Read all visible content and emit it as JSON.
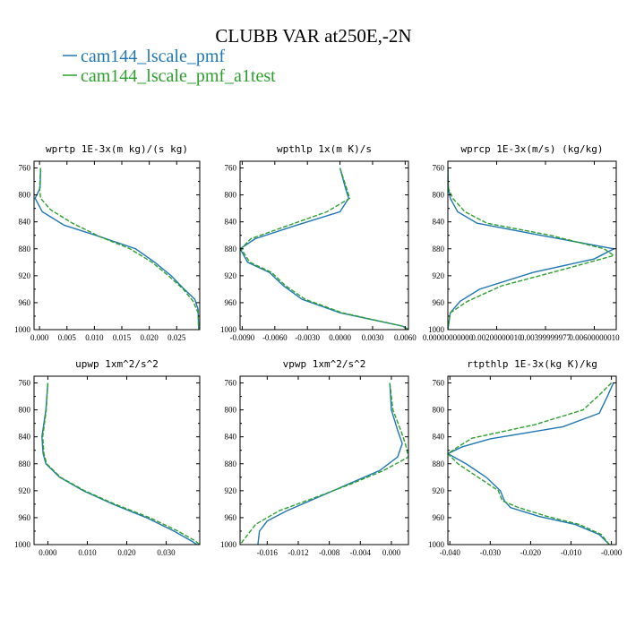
{
  "figure": {
    "title": "CLUBB VAR at250E,-2N",
    "legend": [
      {
        "name": "cam144_lscale_pmf",
        "color": "#1f77b4",
        "dash": "solid"
      },
      {
        "name": "cam144_lscale_pmf_a1test",
        "color": "#2ca02c",
        "dash": "dashed"
      }
    ]
  },
  "chart_data": [
    {
      "type": "line",
      "title": "wprtp  1E-3x(m kg)/(s kg)",
      "xlim": [
        -0.001,
        0.0292
      ],
      "ylim": [
        1000,
        750
      ],
      "xticks": [
        0.0,
        0.005,
        0.01,
        0.015,
        0.02,
        0.025
      ],
      "xtick_labels": [
        "0.000",
        "0.005",
        "0.010",
        "0.015",
        "0.020",
        "0.025"
      ],
      "yticks": [
        760,
        800,
        840,
        880,
        920,
        960,
        1000
      ],
      "series": [
        {
          "name": "cam144_lscale_pmf",
          "points": [
            [
              0.0002,
              760
            ],
            [
              0.0001,
              790
            ],
            [
              -0.0008,
              805
            ],
            [
              0.0005,
              825
            ],
            [
              0.0045,
              845
            ],
            [
              0.011,
              862
            ],
            [
              0.0175,
              880
            ],
            [
              0.021,
              900
            ],
            [
              0.024,
              920
            ],
            [
              0.026,
              937
            ],
            [
              0.0283,
              955
            ],
            [
              0.0289,
              970
            ],
            [
              0.029,
              1000
            ]
          ]
        },
        {
          "name": "cam144_lscale_pmf_a1test",
          "points": [
            [
              0.0002,
              760
            ],
            [
              0.0,
              790
            ],
            [
              0.0002,
              805
            ],
            [
              0.002,
              822
            ],
            [
              0.006,
              842
            ],
            [
              0.011,
              862
            ],
            [
              0.0165,
              880
            ],
            [
              0.0205,
              900
            ],
            [
              0.0235,
              920
            ],
            [
              0.0262,
              940
            ],
            [
              0.028,
              958
            ],
            [
              0.0289,
              975
            ],
            [
              0.029,
              1000
            ]
          ]
        }
      ]
    },
    {
      "type": "line",
      "title": "wpthlp  1x(m K)/s",
      "xlim": [
        -0.0092,
        0.0063
      ],
      "ylim": [
        1000,
        750
      ],
      "xticks": [
        -0.009,
        -0.006,
        -0.003,
        0.0,
        0.003,
        0.006
      ],
      "xtick_labels": [
        "-0.0090",
        "-0.0060",
        "-0.0030",
        "0.0000",
        "0.0030",
        "0.0060"
      ],
      "yticks": [
        760,
        800,
        840,
        880,
        920,
        960,
        1000
      ],
      "series": [
        {
          "name": "cam144_lscale_pmf",
          "points": [
            [
              0.0,
              760
            ],
            [
              0.0005,
              790
            ],
            [
              0.0008,
              805
            ],
            [
              0.0,
              825
            ],
            [
              -0.004,
              845
            ],
            [
              -0.0078,
              865
            ],
            [
              -0.0092,
              880
            ],
            [
              -0.0085,
              900
            ],
            [
              -0.0065,
              915
            ],
            [
              -0.0052,
              935
            ],
            [
              -0.0035,
              955
            ],
            [
              0.0,
              975
            ],
            [
              0.0058,
              995
            ],
            [
              0.0063,
              1000
            ]
          ]
        },
        {
          "name": "cam144_lscale_pmf_a1test",
          "points": [
            [
              0.0,
              760
            ],
            [
              0.0006,
              790
            ],
            [
              0.0009,
              805
            ],
            [
              -0.0012,
              825
            ],
            [
              -0.0047,
              845
            ],
            [
              -0.0082,
              865
            ],
            [
              -0.0091,
              880
            ],
            [
              -0.0083,
              900
            ],
            [
              -0.0063,
              915
            ],
            [
              -0.005,
              935
            ],
            [
              -0.0032,
              955
            ],
            [
              0.0002,
              975
            ],
            [
              0.0058,
              995
            ],
            [
              0.0063,
              1000
            ]
          ]
        }
      ]
    },
    {
      "type": "line",
      "title": "wprcp  1E-3x(m/s) (kg/kg)",
      "xlim": [
        0.0,
        0.0069
      ],
      "ylim": [
        1000,
        750
      ],
      "xticks": [
        0.0,
        0.002,
        0.004,
        0.006
      ],
      "xtick_labels": [
        "0.00000000000",
        "0.00200000010",
        "0.00399999977",
        "0.00600000010"
      ],
      "yticks": [
        760,
        800,
        840,
        880,
        920,
        960,
        1000
      ],
      "series": [
        {
          "name": "cam144_lscale_pmf",
          "points": [
            [
              0.0,
              760
            ],
            [
              2e-05,
              790
            ],
            [
              0.0001,
              805
            ],
            [
              0.0004,
              825
            ],
            [
              0.0012,
              842
            ],
            [
              0.0038,
              860
            ],
            [
              0.0068,
              880
            ],
            [
              0.006,
              895
            ],
            [
              0.0035,
              915
            ],
            [
              0.0013,
              940
            ],
            [
              0.0005,
              958
            ],
            [
              0.0001,
              975
            ],
            [
              0.0,
              1000
            ]
          ]
        },
        {
          "name": "cam144_lscale_pmf_a1test",
          "points": [
            [
              0.0,
              760
            ],
            [
              2e-05,
              790
            ],
            [
              0.0002,
              805
            ],
            [
              0.0007,
              825
            ],
            [
              0.0016,
              842
            ],
            [
              0.0042,
              860
            ],
            [
              0.0064,
              880
            ],
            [
              0.0068,
              890
            ],
            [
              0.0048,
              910
            ],
            [
              0.0022,
              935
            ],
            [
              0.0008,
              958
            ],
            [
              0.0001,
              975
            ],
            [
              0.0,
              1000
            ]
          ]
        }
      ]
    },
    {
      "type": "line",
      "title": "upwp  1xm^2/s^2",
      "xlim": [
        -0.0035,
        0.0385
      ],
      "ylim": [
        1000,
        750
      ],
      "xticks": [
        0.0,
        0.01,
        0.02,
        0.03
      ],
      "xtick_labels": [
        "0.000",
        "0.010",
        "0.020",
        "0.030"
      ],
      "yticks": [
        760,
        800,
        840,
        880,
        920,
        960,
        1000
      ],
      "series": [
        {
          "name": "cam144_lscale_pmf",
          "points": [
            [
              0.0,
              760
            ],
            [
              -0.0005,
              800
            ],
            [
              -0.0015,
              840
            ],
            [
              -0.0012,
              865
            ],
            [
              -0.0005,
              880
            ],
            [
              0.003,
              900
            ],
            [
              0.009,
              920
            ],
            [
              0.0165,
              940
            ],
            [
              0.025,
              960
            ],
            [
              0.032,
              980
            ],
            [
              0.0365,
              995
            ],
            [
              0.0378,
              1000
            ]
          ]
        },
        {
          "name": "cam144_lscale_pmf_a1test",
          "points": [
            [
              0.0,
              760
            ],
            [
              -0.0004,
              800
            ],
            [
              -0.0013,
              840
            ],
            [
              -0.001,
              865
            ],
            [
              -0.0003,
              880
            ],
            [
              0.0032,
              900
            ],
            [
              0.0093,
              920
            ],
            [
              0.017,
              940
            ],
            [
              0.0258,
              960
            ],
            [
              0.033,
              980
            ],
            [
              0.0375,
              995
            ],
            [
              0.0384,
              1000
            ]
          ]
        }
      ]
    },
    {
      "type": "line",
      "title": "vpwp  1xm^2/s^2",
      "xlim": [
        -0.0195,
        0.0022
      ],
      "ylim": [
        1000,
        750
      ],
      "xticks": [
        -0.016,
        -0.012,
        -0.008,
        -0.004,
        0.0
      ],
      "xtick_labels": [
        "-0.016",
        "-0.012",
        "-0.008",
        "-0.004",
        "0.000"
      ],
      "yticks": [
        760,
        800,
        840,
        880,
        920,
        960,
        1000
      ],
      "series": [
        {
          "name": "cam144_lscale_pmf",
          "points": [
            [
              -0.0002,
              760
            ],
            [
              0.0,
              800
            ],
            [
              0.0008,
              830
            ],
            [
              0.0014,
              850
            ],
            [
              0.0008,
              870
            ],
            [
              -0.0015,
              890
            ],
            [
              -0.0055,
              910
            ],
            [
              -0.0095,
              930
            ],
            [
              -0.0135,
              950
            ],
            [
              -0.016,
              965
            ],
            [
              -0.017,
              980
            ],
            [
              -0.0172,
              1000
            ]
          ]
        },
        {
          "name": "cam144_lscale_pmf_a1test",
          "points": [
            [
              -0.0002,
              760
            ],
            [
              0.0002,
              800
            ],
            [
              0.0012,
              830
            ],
            [
              0.0018,
              850
            ],
            [
              0.0022,
              870
            ],
            [
              -0.001,
              890
            ],
            [
              -0.0052,
              910
            ],
            [
              -0.0098,
              930
            ],
            [
              -0.0145,
              950
            ],
            [
              -0.0175,
              970
            ],
            [
              -0.0195,
              1000
            ]
          ]
        }
      ]
    },
    {
      "type": "line",
      "title": "rtpthlp  1E-3x(kg K)/kg",
      "xlim": [
        -0.0405,
        0.0012
      ],
      "ylim": [
        1000,
        750
      ],
      "xticks": [
        -0.04,
        -0.03,
        -0.02,
        -0.01,
        0.0
      ],
      "xtick_labels": [
        "-0.040",
        "-0.030",
        "-0.020",
        "-0.010",
        "-0.000"
      ],
      "yticks": [
        760,
        800,
        840,
        880,
        920,
        960,
        1000
      ],
      "series": [
        {
          "name": "cam144_lscale_pmf",
          "points": [
            [
              0.0005,
              760
            ],
            [
              -0.001,
              780
            ],
            [
              -0.003,
              805
            ],
            [
              -0.012,
              825
            ],
            [
              -0.03,
              843
            ],
            [
              -0.037,
              855
            ],
            [
              -0.0405,
              865
            ],
            [
              -0.036,
              880
            ],
            [
              -0.031,
              900
            ],
            [
              -0.0275,
              920
            ],
            [
              -0.0265,
              935
            ],
            [
              -0.025,
              945
            ],
            [
              -0.018,
              958
            ],
            [
              -0.009,
              970
            ],
            [
              -0.003,
              985
            ],
            [
              -0.0005,
              1000
            ]
          ]
        },
        {
          "name": "cam144_lscale_pmf_a1test",
          "points": [
            [
              0.0,
              760
            ],
            [
              -0.0025,
              775
            ],
            [
              -0.007,
              800
            ],
            [
              -0.019,
              822
            ],
            [
              -0.0345,
              842
            ],
            [
              -0.038,
              855
            ],
            [
              -0.0405,
              865
            ],
            [
              -0.038,
              880
            ],
            [
              -0.033,
              900
            ],
            [
              -0.028,
              920
            ],
            [
              -0.027,
              935
            ],
            [
              -0.023,
              945
            ],
            [
              -0.016,
              958
            ],
            [
              -0.008,
              970
            ],
            [
              -0.0025,
              985
            ],
            [
              -0.0005,
              1000
            ]
          ]
        }
      ]
    }
  ]
}
